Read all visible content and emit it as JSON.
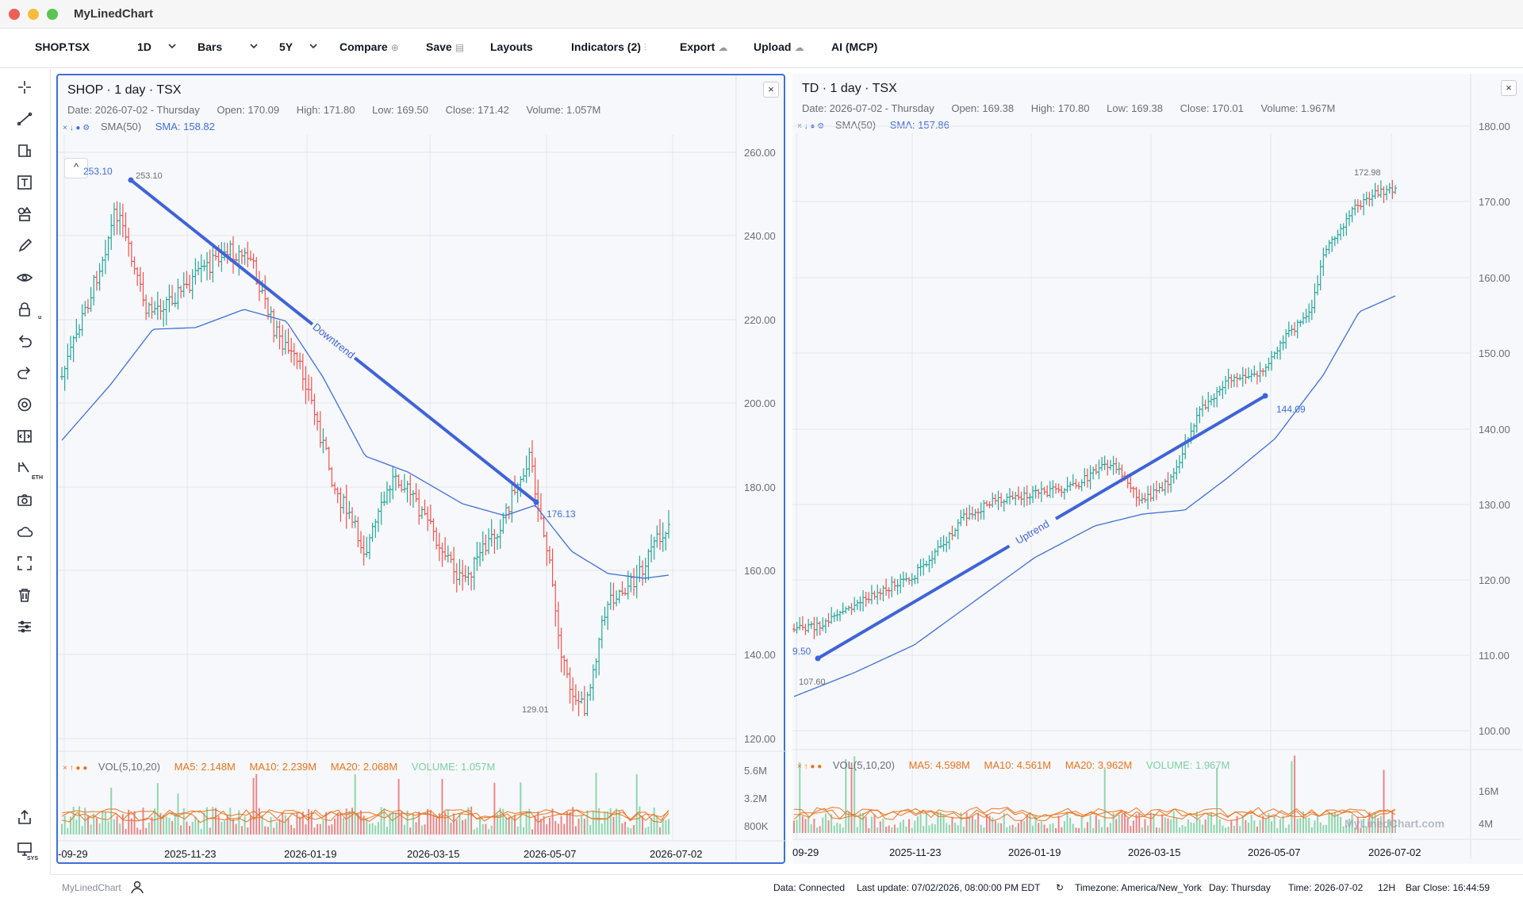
{
  "window": {
    "title": "MyLinedChart",
    "traffic_colors": [
      "#ee5f57",
      "#f6bd3b",
      "#5ac453"
    ]
  },
  "toolbar": {
    "symbol": "SHOP.TSX",
    "interval": "1D",
    "chart_type": "Bars",
    "range": "5Y",
    "compare": "Compare",
    "save": "Save",
    "layouts": "Layouts",
    "indicators": "Indicators (2)",
    "export": "Export",
    "upload": "Upload",
    "ai": "AI (MCP)"
  },
  "sidebar": {
    "tools": [
      "crosshair-icon",
      "trendline-icon",
      "fib-icon",
      "text-icon",
      "shapes-icon",
      "brush-icon",
      "eye-icon",
      "lock-icon",
      "undo-icon",
      "redo-icon",
      "settings-icon",
      "measure-icon",
      "eth-icon",
      "camera-icon",
      "cloud-icon",
      "fullscreen-icon",
      "trash-icon",
      "sliders-icon"
    ],
    "bottom_tools": [
      "share-icon",
      "sys-icon"
    ],
    "lock_sub": "u",
    "eth_sub": "ETH",
    "sys_sub": "SYS"
  },
  "colors": {
    "up": "#26a69a",
    "down": "#ef5350",
    "sma": "#3f6fd8",
    "trend": "#3f63d8",
    "ma_orange": "#e8731f",
    "vol_green": "#7ccfa0",
    "accent": "#3f6fd8"
  },
  "panes": [
    {
      "title": "SHOP · 1 day · TSX",
      "ohlc": {
        "date": "Date: 2026-07-02 - Thursday",
        "open": "Open: 170.09",
        "high": "High: 171.80",
        "low": "Low: 169.50",
        "close": "Close: 171.42",
        "volume": "Volume: 1.057M"
      },
      "sma": {
        "icons": "× ↓ ● ⚙",
        "name": "SMA(50)",
        "value": "SMA: 158.82"
      },
      "vol": {
        "icons": "× ↑ ● ●",
        "name": "VOL(5,10,20)",
        "ma5": "MA5: 2.148M",
        "ma10": "MA10: 2.239M",
        "ma20": "MA20: 2.068M",
        "volume": "VOLUME: 1.057M"
      },
      "price_ticks": [
        "260.00",
        "240.00",
        "220.00",
        "200.00",
        "180.00",
        "160.00",
        "140.00",
        "120.00"
      ],
      "vol_ticks": [
        "5.6M",
        "3.2M",
        "800K"
      ],
      "dates": [
        "-09-29",
        "2025-11-23",
        "2026-01-19",
        "2026-03-15",
        "2026-05-07",
        "2026-07-02"
      ],
      "annotations": {
        "high_tag": "253.10",
        "high_label": "253.10",
        "low_label": "129.01",
        "trend_end": "176.13",
        "trend_text": "Downtrend"
      },
      "collapse": "^",
      "close": "×"
    },
    {
      "title": "TD · 1 day · TSX",
      "ohlc": {
        "date": "Date: 2026-07-02 - Thursday",
        "open": "Open: 169.38",
        "high": "High: 170.80",
        "low": "Low: 169.38",
        "close": "Close: 170.01",
        "volume": "Volume: 1.967M"
      },
      "sma": {
        "icons": "× ↓ ● ⚙",
        "name": "SMA(50)",
        "value": "SMA: 157.86"
      },
      "vol": {
        "icons": "× ↑ ● ●",
        "name": "VOL(5,10,20)",
        "ma5": "MA5: 4.598M",
        "ma10": "MA10: 4.561M",
        "ma20": "MA20: 3.962M",
        "volume": "VOLUME: 1.967M"
      },
      "price_ticks": [
        "180.00",
        "170.00",
        "160.00",
        "150.00",
        "140.00",
        "130.00",
        "120.00",
        "110.00",
        "100.00"
      ],
      "vol_ticks": [
        "16M",
        "4M"
      ],
      "dates": [
        "09-29",
        "2025-11-23",
        "2026-01-19",
        "2026-03-15",
        "2026-05-07",
        "2026-07-02"
      ],
      "annotations": {
        "high_label": "172.98",
        "low_label": "107.60",
        "trend_start": "9.50",
        "trend_end": "144.09",
        "trend_text": "Uptrend",
        "watermark": "MyLinedChart.com"
      },
      "close": "×"
    }
  ],
  "statusbar": {
    "brand": "MyLinedChart",
    "data": "Data: Connected",
    "last_update": "Last update: 07/02/2026, 08:00:00 PM EDT",
    "refresh": "↻",
    "timezone": "Timezone: America/New_York",
    "day": "Day: Thursday",
    "time": "Time: 2026-07-02",
    "hours": "12H",
    "bar_close": "Bar Close: 16:44:59"
  }
}
